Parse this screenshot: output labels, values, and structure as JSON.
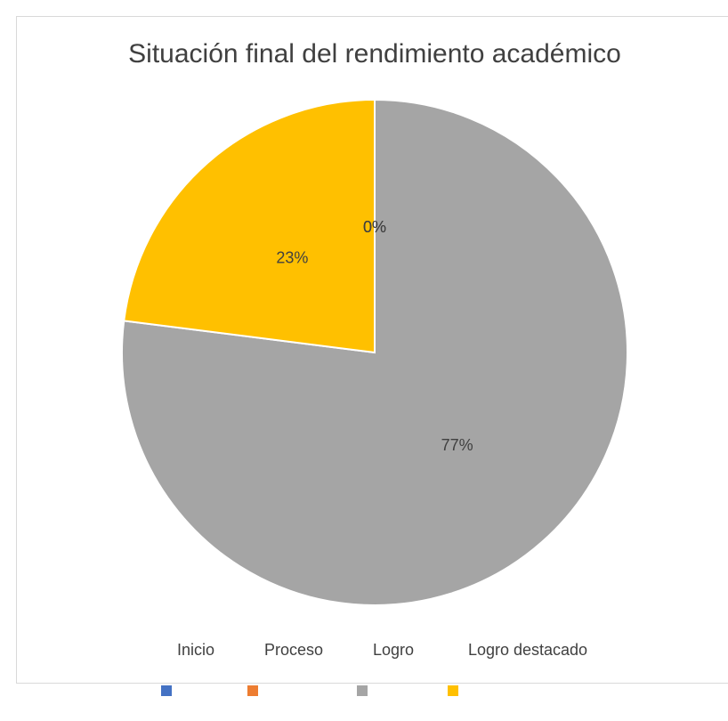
{
  "chart_data": {
    "type": "pie",
    "title": "Situación final del rendimiento académico",
    "categories": [
      "Inicio",
      "Proceso",
      "Logro",
      "Logro destacado"
    ],
    "values": [
      0,
      0,
      77,
      23
    ],
    "colors": [
      "#4472c4",
      "#ed7d31",
      "#a5a5a5",
      "#ffc000"
    ]
  }
}
